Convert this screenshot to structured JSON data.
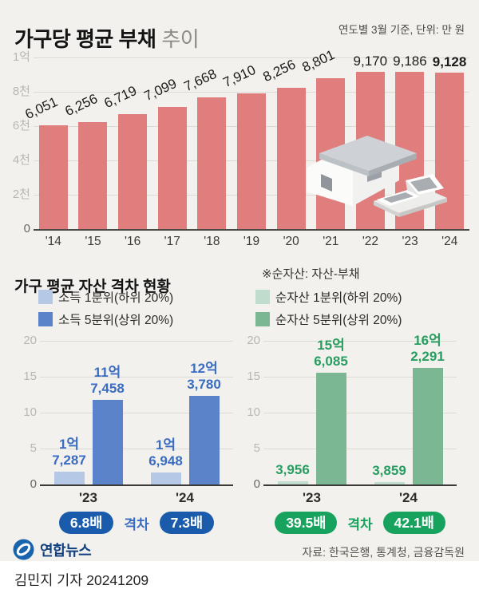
{
  "header": {
    "title_main": "가구당 평균 부채",
    "title_sub": "추이",
    "unit_note": "연도별 3월 기준, 단위: 만 원"
  },
  "section2": {
    "title": "가구 평균 자산 격차 현황",
    "note": "※순자산: 자산-부채"
  },
  "footer": {
    "logo_text": "연합뉴스",
    "source": "자료: 한국은행, 통계청, 금융감독원",
    "byline": "김민지 기자 20241209"
  },
  "colors": {
    "debt_bar": "#e07e7e",
    "income_low": "#b5c8e6",
    "income_high": "#5b83c9",
    "networth_low": "#bfdccd",
    "networth_high": "#7cb794",
    "badge_blue": "#1a5cab",
    "badge_green": "#17a35d",
    "logo_blue": "#1a63ad"
  },
  "chart_data": [
    {
      "type": "bar",
      "title": "가구당 평균 부채 추이",
      "unit": "만 원",
      "categories": [
        "'14",
        "'15",
        "'16",
        "'17",
        "'18",
        "'19",
        "'20",
        "'21",
        "'22",
        "'23",
        "'24"
      ],
      "values": [
        6051,
        6256,
        6719,
        7099,
        7668,
        7910,
        8256,
        8801,
        9170,
        9186,
        9128
      ],
      "value_labels": [
        "6,051",
        "6,256",
        "6,719",
        "7,099",
        "7,668",
        "7,910",
        "8,256",
        "8,801",
        "9,170",
        "9,186",
        "9,128"
      ],
      "yticks": [
        "0",
        "2천",
        "4천",
        "6천",
        "8천",
        "1억"
      ],
      "ylim": [
        0,
        10000
      ],
      "color": "#e07e7e",
      "horizontal_from": 8,
      "emphasized_index": 10,
      "grid": true,
      "legend_position": "none"
    },
    {
      "type": "grouped_bar",
      "title": "가구 평균 자산 격차 현황",
      "categories": [
        "'23",
        "'24"
      ],
      "yticks": [
        "0",
        "5",
        "10",
        "15",
        "20"
      ],
      "ylim": [
        0,
        20
      ],
      "series": [
        {
          "name": "소득 1분위(하위 20%)",
          "color": "#b5c8e6",
          "label_color": "#3a6cc1",
          "values": [
            1.7287,
            1.6948
          ],
          "value_labels": [
            [
              "1억",
              "7,287"
            ],
            [
              "1억",
              "6,948"
            ]
          ]
        },
        {
          "name": "소득 5분위(상위 20%)",
          "color": "#5b83c9",
          "label_color": "#3a6cc1",
          "values": [
            11.7458,
            12.378
          ],
          "value_labels": [
            [
              "11억",
              "7,458"
            ],
            [
              "12억",
              "3,780"
            ]
          ]
        }
      ],
      "gap": {
        "label": "격차",
        "values": [
          "6.8배",
          "7.3배"
        ]
      }
    },
    {
      "type": "grouped_bar",
      "title": "※순자산: 자산-부채",
      "categories": [
        "'23",
        "'24"
      ],
      "yticks": [
        "0",
        "5",
        "10",
        "15",
        "20"
      ],
      "ylim": [
        0,
        20
      ],
      "series": [
        {
          "name": "순자산 1분위(하위 20%)",
          "color": "#bfdccd",
          "label_color": "#279e60",
          "values": [
            0.3956,
            0.3859
          ],
          "value_labels": [
            [
              "3,956"
            ],
            [
              "3,859"
            ]
          ]
        },
        {
          "name": "순자산 5분위(상위 20%)",
          "color": "#7cb794",
          "label_color": "#279e60",
          "values": [
            15.6085,
            16.2291
          ],
          "value_labels": [
            [
              "15억",
              "6,085"
            ],
            [
              "16억",
              "2,291"
            ]
          ]
        }
      ],
      "gap": {
        "label": "격차",
        "values": [
          "39.5배",
          "42.1배"
        ]
      }
    }
  ]
}
